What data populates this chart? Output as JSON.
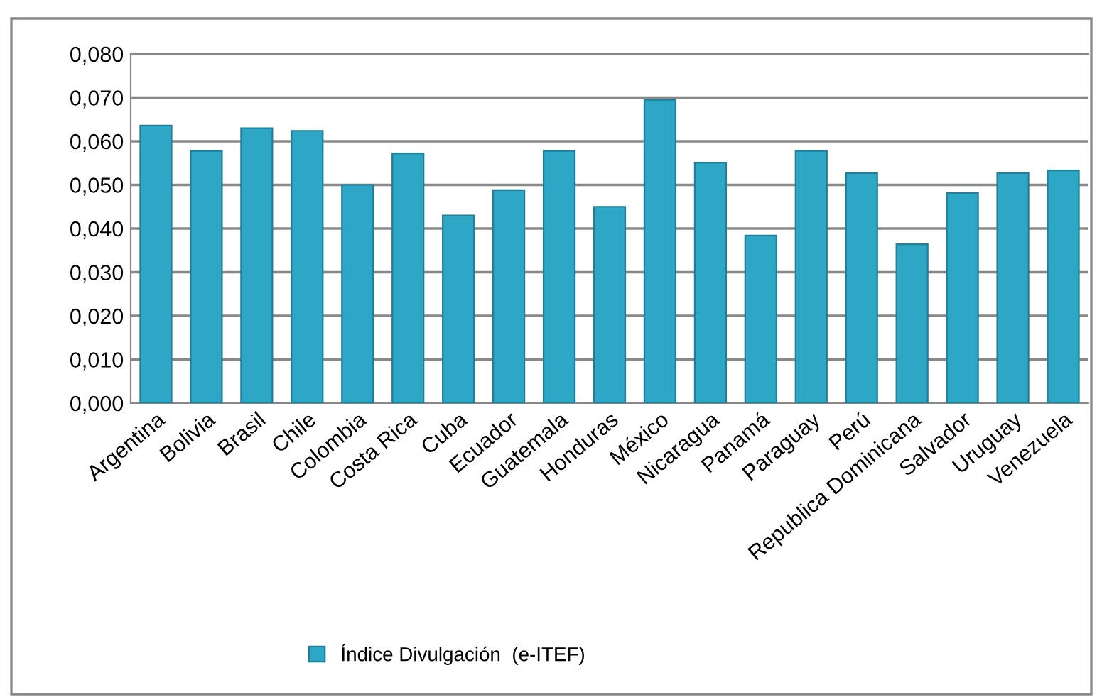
{
  "chart_data": {
    "type": "bar",
    "categories": [
      "Argentina",
      "Bolivia",
      "Brasil",
      "Chile",
      "Colombia",
      "Costa Rica",
      "Cuba",
      "Ecuador",
      "Guatemala",
      "Honduras",
      "México",
      "Nicaragua",
      "Panamá",
      "Paraguay",
      "Perú",
      "Republica Dominicana",
      "Salvador",
      "Uruguay",
      "Venezuela"
    ],
    "series": [
      {
        "name": "Índice Divulgación  (e-ITEF)",
        "color": "#2ea6c6",
        "values": [
          0.0636,
          0.0578,
          0.063,
          0.0624,
          0.05,
          0.0572,
          0.043,
          0.0488,
          0.0578,
          0.045,
          0.0695,
          0.0551,
          0.0384,
          0.0578,
          0.0527,
          0.0364,
          0.0481,
          0.0527,
          0.0533
        ]
      }
    ],
    "ylim": [
      0,
      0.08
    ],
    "yticks": [
      {
        "value": 0,
        "label": "0,000"
      },
      {
        "value": 0.01,
        "label": "0,010"
      },
      {
        "value": 0.02,
        "label": "0,020"
      },
      {
        "value": 0.03,
        "label": "0,030"
      },
      {
        "value": 0.04,
        "label": "0,040"
      },
      {
        "value": 0.05,
        "label": "0,050"
      },
      {
        "value": 0.06,
        "label": "0,060"
      },
      {
        "value": 0.07,
        "label": "0,070"
      },
      {
        "value": 0.08,
        "label": "0,080"
      }
    ],
    "grid": "y",
    "legend": "bottom"
  }
}
